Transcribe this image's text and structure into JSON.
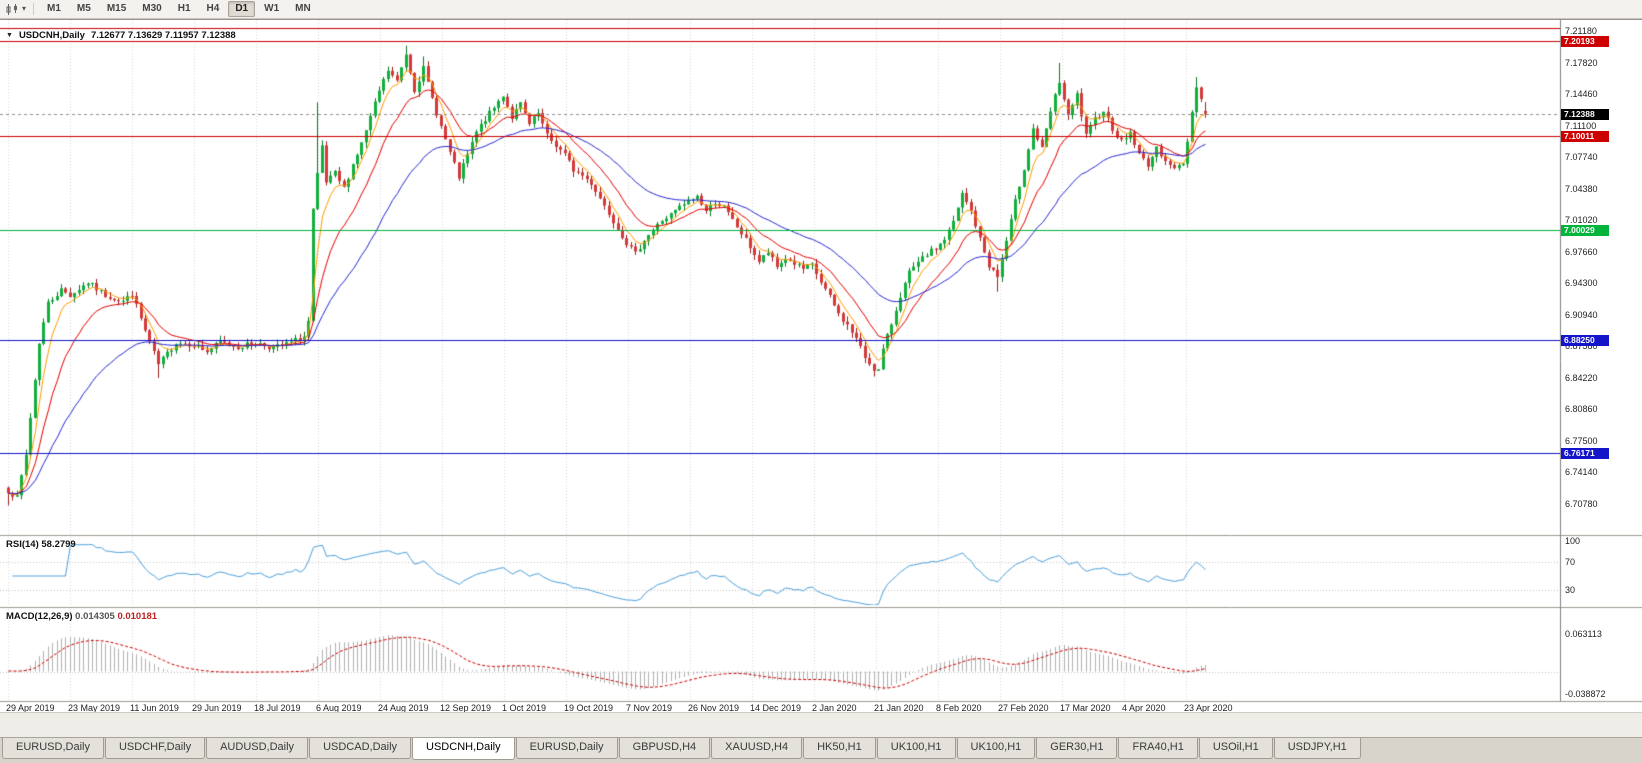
{
  "toolbar": {
    "timeframes": [
      "M1",
      "M5",
      "M15",
      "M30",
      "H1",
      "H4",
      "D1",
      "W1",
      "MN"
    ],
    "active_timeframe": "D1",
    "dropdown_caret": "▾"
  },
  "chart": {
    "symbol_timeframe": "USDCNH,Daily",
    "ohlc_text": "7.12677 7.13629 7.11957 7.12388",
    "collapse_icon": "▼",
    "current_price": "7.12388",
    "current_price_badge_color": "#000000",
    "price_axis_labels": [
      "7.21180",
      "7.17820",
      "7.14460",
      "7.11100",
      "7.07740",
      "7.04380",
      "7.01020",
      "6.97660",
      "6.94300",
      "6.90940",
      "6.87580",
      "6.84220",
      "6.80860",
      "6.77500",
      "6.74140",
      "6.70780"
    ],
    "date_axis_labels": [
      "29 Apr 2019",
      "23 May 2019",
      "11 Jun 2019",
      "29 Jun 2019",
      "18 Jul 2019",
      "6 Aug 2019",
      "24 Aug 2019",
      "12 Sep 2019",
      "1 Oct 2019",
      "19 Oct 2019",
      "7 Nov 2019",
      "26 Nov 2019",
      "14 Dec 2019",
      "2 Jan 2020",
      "21 Jan 2020",
      "8 Feb 2020",
      "27 Feb 2020",
      "17 Mar 2020",
      "4 Apr 2020",
      "23 Apr 2020"
    ],
    "levels": [
      {
        "value": 7.2153,
        "label": "",
        "color": "#cc0000",
        "badge": false
      },
      {
        "value": 7.20193,
        "label": "7.20193",
        "color": "#cc0000",
        "badge": true
      },
      {
        "value": 7.10011,
        "label": "7.10011",
        "color": "#cc0000",
        "badge": true
      },
      {
        "value": 7.00029,
        "label": "7.00029",
        "color": "#00b43c",
        "badge": true
      },
      {
        "value": 6.8825,
        "label": "6.88250",
        "color": "#1414c8",
        "badge": true
      },
      {
        "value": 6.76171,
        "label": "6.76171",
        "color": "#1414c8",
        "badge": true
      }
    ]
  },
  "rsi": {
    "label": "RSI(14)",
    "value": "58.2799",
    "axis_labels": [
      "100",
      "70",
      "30"
    ],
    "line_color": "#4da0dc"
  },
  "macd": {
    "label": "MACD(12,26,9)",
    "value_main": "0.014305",
    "value_signal": "0.010181",
    "axis_labels": [
      "0.063113",
      "-0.038872"
    ],
    "histogram_color": "#b2b2b2",
    "signal_color": "#cc0000"
  },
  "tabs": {
    "items": [
      "EURUSD,Daily",
      "USDCHF,Daily",
      "AUDUSD,Daily",
      "USDCAD,Daily",
      "USDCNH,Daily",
      "EURUSD,Daily",
      "GBPUSD,H4",
      "XAUUSD,H4",
      "HK50,H1",
      "UK100,H1",
      "UK100,H1",
      "GER30,H1",
      "FRA40,H1",
      "USOil,H1",
      "USDJPY,H1"
    ],
    "active_index": 4
  },
  "chart_data": {
    "type": "candlestick",
    "symbol": "USDCNH",
    "timeframe": "Daily",
    "num_bars": 272,
    "last_bar": {
      "open": 7.12677,
      "high": 7.13629,
      "low": 7.11957,
      "close": 7.12388
    },
    "price_anchors": [
      [
        0,
        6.722
      ],
      [
        2,
        6.714
      ],
      [
        4,
        6.76
      ],
      [
        7,
        6.88
      ],
      [
        9,
        6.922
      ],
      [
        12,
        6.936
      ],
      [
        14,
        6.93
      ],
      [
        18,
        6.944
      ],
      [
        22,
        6.93
      ],
      [
        26,
        6.924
      ],
      [
        28,
        6.932
      ],
      [
        31,
        6.892
      ],
      [
        34,
        6.856
      ],
      [
        36,
        6.868
      ],
      [
        38,
        6.88
      ],
      [
        42,
        6.878
      ],
      [
        45,
        6.87
      ],
      [
        48,
        6.88
      ],
      [
        52,
        6.875
      ],
      [
        56,
        6.88
      ],
      [
        60,
        6.874
      ],
      [
        64,
        6.88
      ],
      [
        67,
        6.886
      ],
      [
        68,
        6.902
      ],
      [
        69,
        7.02
      ],
      [
        70,
        7.058
      ],
      [
        71,
        7.088
      ],
      [
        72,
        7.05
      ],
      [
        74,
        7.06
      ],
      [
        76,
        7.044
      ],
      [
        78,
        7.07
      ],
      [
        80,
        7.092
      ],
      [
        82,
        7.12
      ],
      [
        84,
        7.148
      ],
      [
        86,
        7.17
      ],
      [
        88,
        7.158
      ],
      [
        90,
        7.188
      ],
      [
        92,
        7.15
      ],
      [
        94,
        7.172
      ],
      [
        96,
        7.14
      ],
      [
        98,
        7.11
      ],
      [
        100,
        7.082
      ],
      [
        102,
        7.056
      ],
      [
        104,
        7.08
      ],
      [
        106,
        7.104
      ],
      [
        108,
        7.118
      ],
      [
        110,
        7.13
      ],
      [
        112,
        7.144
      ],
      [
        114,
        7.12
      ],
      [
        116,
        7.134
      ],
      [
        118,
        7.112
      ],
      [
        120,
        7.124
      ],
      [
        122,
        7.1
      ],
      [
        124,
        7.09
      ],
      [
        126,
        7.08
      ],
      [
        128,
        7.064
      ],
      [
        130,
        7.058
      ],
      [
        132,
        7.05
      ],
      [
        134,
        7.034
      ],
      [
        137,
        7.01
      ],
      [
        140,
        6.986
      ],
      [
        142,
        6.974
      ],
      [
        144,
        6.99
      ],
      [
        146,
        7.0
      ],
      [
        148,
        7.01
      ],
      [
        150,
        7.016
      ],
      [
        152,
        7.024
      ],
      [
        154,
        7.03
      ],
      [
        156,
        7.036
      ],
      [
        158,
        7.02
      ],
      [
        160,
        7.03
      ],
      [
        162,
        7.024
      ],
      [
        164,
        7.01
      ],
      [
        166,
        6.996
      ],
      [
        168,
        6.982
      ],
      [
        170,
        6.966
      ],
      [
        172,
        6.976
      ],
      [
        174,
        6.96
      ],
      [
        176,
        6.97
      ],
      [
        178,
        6.964
      ],
      [
        180,
        6.958
      ],
      [
        182,
        6.962
      ],
      [
        184,
        6.944
      ],
      [
        186,
        6.928
      ],
      [
        188,
        6.91
      ],
      [
        190,
        6.898
      ],
      [
        192,
        6.884
      ],
      [
        194,
        6.864
      ],
      [
        196,
        6.852
      ],
      [
        197,
        6.85
      ],
      [
        198,
        6.872
      ],
      [
        200,
        6.9
      ],
      [
        202,
        6.93
      ],
      [
        204,
        6.954
      ],
      [
        206,
        6.964
      ],
      [
        208,
        6.974
      ],
      [
        210,
        6.98
      ],
      [
        212,
        6.99
      ],
      [
        214,
        7.008
      ],
      [
        216,
        7.038
      ],
      [
        218,
        7.02
      ],
      [
        220,
        6.99
      ],
      [
        222,
        6.962
      ],
      [
        224,
        6.95
      ],
      [
        226,
        6.988
      ],
      [
        228,
        7.03
      ],
      [
        230,
        7.066
      ],
      [
        232,
        7.108
      ],
      [
        234,
        7.086
      ],
      [
        236,
        7.126
      ],
      [
        238,
        7.158
      ],
      [
        240,
        7.12
      ],
      [
        242,
        7.144
      ],
      [
        244,
        7.1
      ],
      [
        246,
        7.118
      ],
      [
        248,
        7.128
      ],
      [
        250,
        7.108
      ],
      [
        252,
        7.094
      ],
      [
        254,
        7.104
      ],
      [
        256,
        7.08
      ],
      [
        258,
        7.07
      ],
      [
        260,
        7.086
      ],
      [
        262,
        7.076
      ],
      [
        264,
        7.064
      ],
      [
        266,
        7.072
      ],
      [
        267,
        7.094
      ],
      [
        268,
        7.128
      ],
      [
        269,
        7.152
      ],
      [
        270,
        7.14
      ],
      [
        271,
        7.12388
      ]
    ],
    "pinned_highs": [
      [
        70,
        7.136
      ],
      [
        90,
        7.1965
      ],
      [
        94,
        7.185
      ],
      [
        238,
        7.178
      ],
      [
        269,
        7.163
      ]
    ],
    "pinned_lows": [
      [
        0,
        6.706
      ],
      [
        34,
        6.842
      ],
      [
        196,
        6.8435
      ],
      [
        224,
        6.934
      ]
    ],
    "moving_averages": [
      {
        "name": "ma-fast",
        "period": 5,
        "color": "#ff9c00"
      },
      {
        "name": "ma-mid",
        "period": 13,
        "color": "#e60000"
      },
      {
        "name": "ma-slow",
        "period": 34,
        "color": "#2828d2"
      }
    ],
    "candle_colors": {
      "up_body": "#12af3c",
      "up_wick": "#0a7c28",
      "down_body": "#d43a3a",
      "down_wick": "#9e2222"
    },
    "rsi_period": 14,
    "macd_params": [
      12,
      26,
      9
    ]
  }
}
